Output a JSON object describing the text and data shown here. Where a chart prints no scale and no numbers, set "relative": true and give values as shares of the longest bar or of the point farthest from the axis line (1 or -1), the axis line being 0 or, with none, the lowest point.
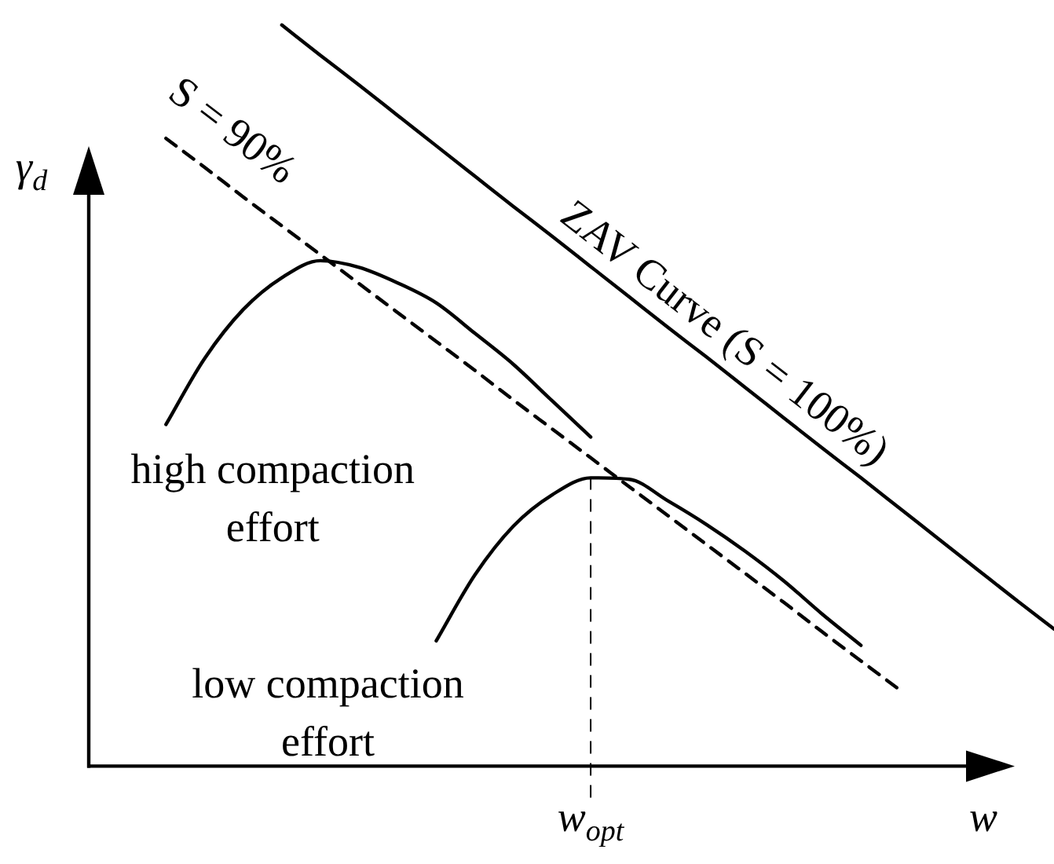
{
  "chart_data": {
    "type": "line",
    "relative": true,
    "legend": false,
    "marker": "none",
    "xlabel": "w",
    "ylabel": "γ$_{d}$",
    "annotations": [
      "w$_{opt}$"
    ],
    "categories": [
      null,
      null,
      null,
      null,
      null,
      null,
      null,
      null,
      null,
      null,
      null,
      null,
      null,
      null,
      null,
      null,
      null,
      null,
      null,
      null,
      null,
      null,
      null,
      null,
      null,
      null
    ],
    "series": [
      {
        "name": "S = 90%",
        "color": "#000000",
        "line_style": "dashed",
        "values": [
          null,
          null,
          0.847,
          0.808,
          0.768,
          0.729,
          0.69,
          0.651,
          0.612,
          0.573,
          0.534,
          0.494,
          0.455,
          0.416,
          0.377,
          0.338,
          0.299,
          0.26,
          0.221,
          0.181,
          0.142,
          0.103,
          null,
          null,
          null,
          null
        ]
      },
      {
        "name": "ZAV Curve (S = 100%)",
        "color": "#000000",
        "line_style": "solid",
        "values": [
          null,
          null,
          null,
          null,
          null,
          1,
          0.959,
          0.919,
          0.878,
          0.837,
          0.796,
          0.755,
          0.715,
          0.674,
          0.633,
          0.592,
          0.552,
          0.511,
          0.47,
          0.429,
          0.389,
          0.348,
          0.307,
          0.266,
          0.225,
          0.185
        ]
      },
      {
        "name": "high compaction effort",
        "color": "#000000",
        "line_style": "solid",
        "values": [
          null,
          null,
          0.461,
          0.55,
          0.616,
          0.659,
          0.682,
          0.673,
          0.652,
          0.625,
          0.584,
          0.542,
          0.493,
          0.444,
          null,
          null,
          null,
          null,
          null,
          null,
          null,
          null,
          null,
          null,
          null,
          null
        ]
      },
      {
        "name": "low compaction effort",
        "color": "#000000",
        "line_style": "solid",
        "values": [
          null,
          null,
          null,
          null,
          null,
          null,
          null,
          null,
          null,
          0.169,
          0.258,
          0.324,
          0.366,
          0.389,
          0.387,
          0.358,
          0.326,
          0.29,
          0.25,
          0.205,
          0.163,
          null,
          null,
          null,
          null,
          null
        ]
      }
    ]
  }
}
